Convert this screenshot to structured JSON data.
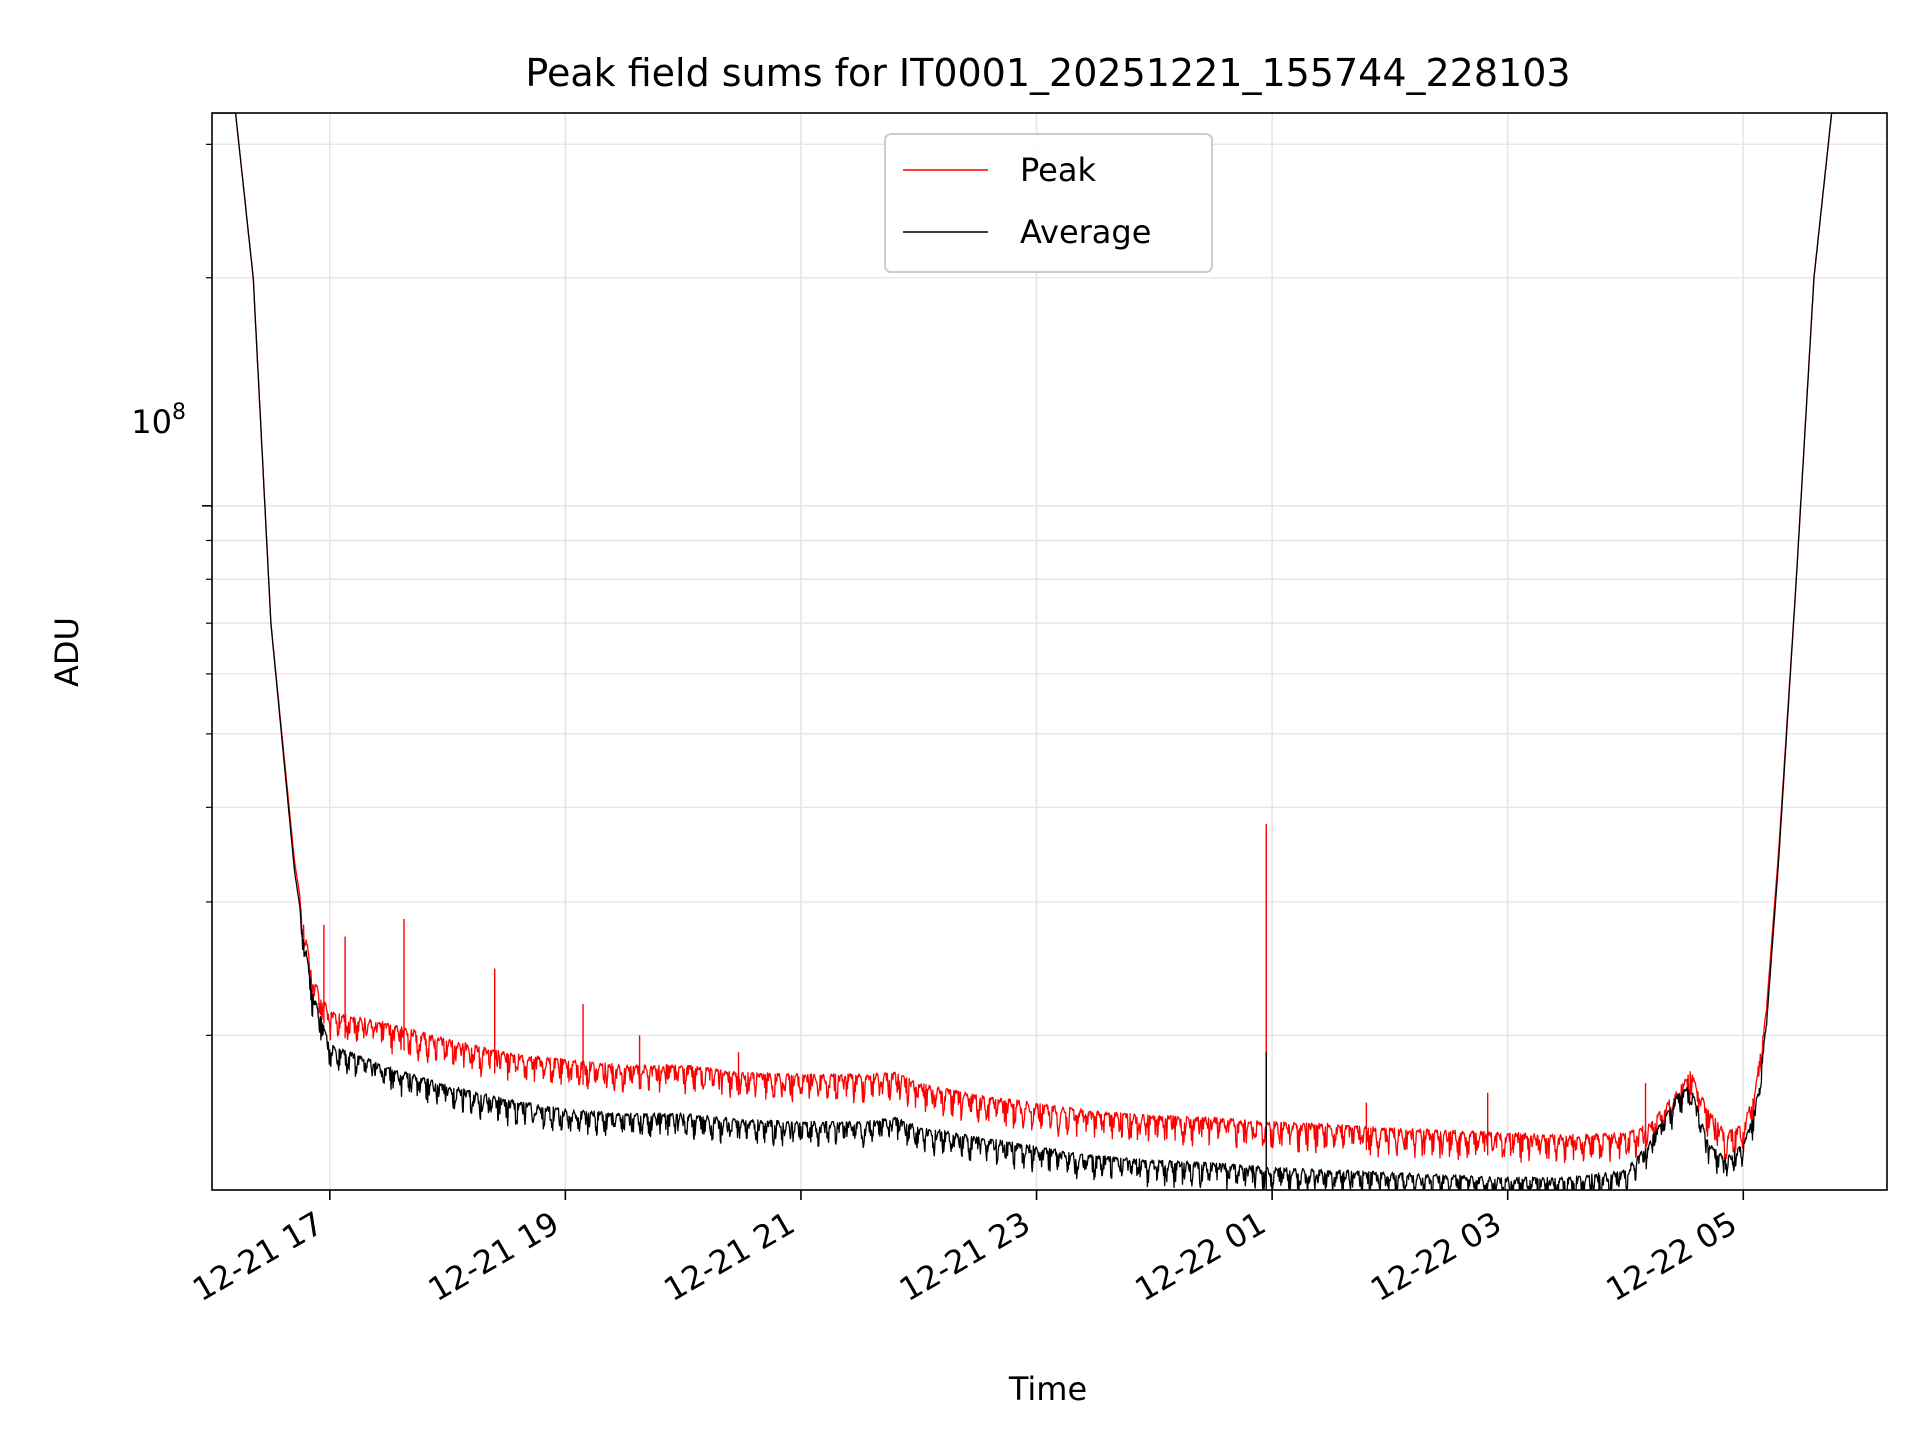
{
  "chart_data": {
    "type": "line",
    "title": "Peak field sums for IT0001_20251221_155744_228103",
    "xlabel": "Time",
    "ylabel": "ADU",
    "yscale": "log",
    "ylim": [
      12500000,
      330000000
    ],
    "xlim_hours_since_2025_12_21_00": [
      16.0,
      30.22
    ],
    "x_ticks": [
      {
        "hour": 17,
        "label": "12-21 17"
      },
      {
        "hour": 19,
        "label": "12-21 19"
      },
      {
        "hour": 21,
        "label": "12-21 21"
      },
      {
        "hour": 23,
        "label": "12-21 23"
      },
      {
        "hour": 25,
        "label": "12-22 01"
      },
      {
        "hour": 27,
        "label": "12-22 03"
      },
      {
        "hour": 29,
        "label": "12-22 05"
      }
    ],
    "y_major_tick": {
      "value": 100000000,
      "label_base": "10",
      "label_exp": "8"
    },
    "y_minor_ticks": [
      20000000,
      30000000,
      40000000,
      50000000,
      60000000,
      70000000,
      80000000,
      90000000,
      200000000,
      300000000
    ],
    "grid": true,
    "legend_position": "top-center",
    "series": [
      {
        "name": "Peak",
        "color": "#ff0000",
        "x_hours": [
          16.0,
          16.2,
          16.35,
          16.5,
          16.7,
          16.85,
          17.0,
          17.5,
          18.0,
          18.5,
          19.0,
          19.5,
          20.0,
          20.5,
          21.0,
          21.5,
          21.8,
          22.0,
          22.5,
          23.0,
          23.5,
          24.0,
          24.5,
          25.0,
          25.5,
          26.0,
          26.5,
          27.0,
          27.5,
          28.0,
          28.2,
          28.45,
          28.55,
          28.7,
          28.85,
          29.0,
          29.1,
          29.2,
          29.3,
          29.45,
          29.6,
          29.75,
          30.22
        ],
        "y": [
          330000000,
          330000000,
          200000000,
          70000000,
          34000000,
          24000000,
          21500000,
          20800000,
          19800000,
          19000000,
          18600000,
          18300000,
          18300000,
          17900000,
          17800000,
          17800000,
          17900000,
          17300000,
          16700000,
          16300000,
          15900000,
          15700000,
          15600000,
          15400000,
          15300000,
          15100000,
          15000000,
          14900000,
          14800000,
          14900000,
          15300000,
          17000000,
          18000000,
          16000000,
          14900000,
          15300000,
          17000000,
          22000000,
          35000000,
          80000000,
          200000000,
          330000000,
          330000000
        ]
      },
      {
        "name": "Average",
        "color": "#000000",
        "x_hours": [
          16.0,
          16.2,
          16.35,
          16.5,
          16.7,
          16.85,
          17.0,
          17.5,
          18.0,
          18.5,
          19.0,
          19.5,
          20.0,
          20.5,
          21.0,
          21.5,
          21.8,
          22.0,
          22.5,
          23.0,
          23.5,
          24.0,
          24.5,
          25.0,
          25.5,
          26.0,
          26.5,
          27.0,
          27.5,
          28.0,
          28.2,
          28.45,
          28.55,
          28.7,
          28.85,
          29.0,
          29.1,
          29.2,
          29.3,
          29.45,
          29.6,
          29.75,
          30.22
        ],
        "y": [
          330000000,
          330000000,
          200000000,
          70000000,
          33000000,
          23000000,
          19500000,
          18200000,
          17200000,
          16500000,
          16000000,
          15800000,
          15800000,
          15500000,
          15400000,
          15400000,
          15600000,
          15200000,
          14700000,
          14300000,
          13900000,
          13700000,
          13600000,
          13400000,
          13300000,
          13200000,
          13100000,
          13000000,
          13000000,
          13300000,
          14500000,
          16800000,
          17200000,
          14500000,
          13800000,
          14400000,
          16000000,
          21000000,
          34000000,
          80000000,
          200000000,
          330000000,
          330000000
        ]
      }
    ],
    "spikes": [
      {
        "series": "Peak",
        "hour": 16.95,
        "y": 28000000
      },
      {
        "series": "Peak",
        "hour": 17.13,
        "y": 27000000
      },
      {
        "series": "Peak",
        "hour": 17.63,
        "y": 28500000
      },
      {
        "series": "Peak",
        "hour": 18.4,
        "y": 24500000
      },
      {
        "series": "Peak",
        "hour": 19.15,
        "y": 22000000
      },
      {
        "series": "Peak",
        "hour": 19.63,
        "y": 20000000
      },
      {
        "series": "Peak",
        "hour": 20.47,
        "y": 19000000
      },
      {
        "series": "Peak",
        "hour": 24.95,
        "y": 38000000
      },
      {
        "series": "Average",
        "hour": 24.95,
        "y": 19000000
      },
      {
        "series": "Peak",
        "hour": 25.8,
        "y": 16300000
      },
      {
        "series": "Peak",
        "hour": 26.83,
        "y": 16800000
      },
      {
        "series": "Peak",
        "hour": 28.17,
        "y": 17300000
      }
    ]
  }
}
